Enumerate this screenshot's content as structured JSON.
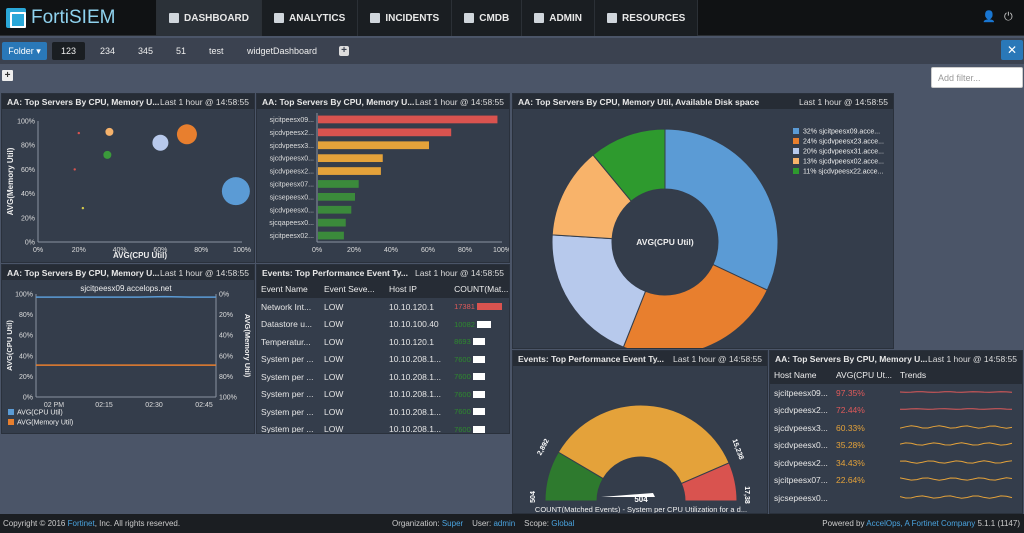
{
  "app": {
    "logo": "FortiSIEM"
  },
  "nav": [
    {
      "label": "DASHBOARD",
      "icon": "dashboard-icon"
    },
    {
      "label": "ANALYTICS",
      "icon": "chart-icon"
    },
    {
      "label": "INCIDENTS",
      "icon": "bell-icon"
    },
    {
      "label": "CMDB",
      "icon": "database-icon"
    },
    {
      "label": "ADMIN",
      "icon": "gears-icon"
    },
    {
      "label": "RESOURCES",
      "icon": "chart-icon"
    }
  ],
  "tabs": {
    "folder": "Folder ▾",
    "items": [
      "123",
      "234",
      "345",
      "51",
      "test",
      "widgetDashboard"
    ],
    "active": "123"
  },
  "filter": {
    "placeholder": "Add filter..."
  },
  "time": "Last 1 hour @ 14:58:55",
  "panels": {
    "p1": {
      "title": "AA: Top Servers By CPU, Memory U..."
    },
    "p2": {
      "title": "AA: Top Servers By CPU, Memory U..."
    },
    "p3": {
      "title": "AA: Top Servers By CPU, Memory Util, Available Disk space"
    },
    "p4": {
      "title": "AA: Top Servers By CPU, Memory U..."
    },
    "p5": {
      "title": "Events: Top Performance Event Ty..."
    },
    "p6": {
      "title": "Events: Top Performance Event Ty..."
    },
    "p7": {
      "title": "AA: Top Servers By CPU, Memory U..."
    }
  },
  "chart_data": [
    {
      "type": "scatter",
      "xlabel": "AVG(CPU Util)",
      "ylabel": "AVG(Memory Util)",
      "xlim": [
        0,
        100
      ],
      "ylim": [
        0,
        100
      ],
      "xticks": [
        "0%",
        "20%",
        "40%",
        "60%",
        "80%",
        "100%"
      ],
      "yticks": [
        "0%",
        "20%",
        "40%",
        "60%",
        "80%",
        "100%"
      ],
      "points": [
        {
          "x": 97,
          "y": 42,
          "r": 14,
          "color": "#5b9bd5"
        },
        {
          "x": 73,
          "y": 89,
          "r": 10,
          "color": "#e87f2e"
        },
        {
          "x": 60,
          "y": 82,
          "r": 8,
          "color": "#b7c9ec"
        },
        {
          "x": 35,
          "y": 91,
          "r": 4,
          "color": "#f5b26b"
        },
        {
          "x": 34,
          "y": 72,
          "r": 4,
          "color": "#3b9a3b"
        },
        {
          "x": 20,
          "y": 90,
          "r": 1.2,
          "color": "#d9534f"
        },
        {
          "x": 18,
          "y": 60,
          "r": 1.2,
          "color": "#d9534f"
        },
        {
          "x": 22,
          "y": 28,
          "r": 1.2,
          "color": "#d4c94a"
        }
      ]
    },
    {
      "type": "bar",
      "orientation": "horizontal",
      "categories": [
        "sjcitpeesx09...",
        "sjcdvpeesx2...",
        "sjcdvpeesx3...",
        "sjcdvpeesx0...",
        "sjcdvpeesx2...",
        "sjcitpeesx07...",
        "sjcsepeesx0...",
        "sjcdvpeesx0...",
        "sjcqapeesx0...",
        "sjcitpeesx02..."
      ],
      "values": [
        97,
        72,
        60,
        35,
        34,
        22,
        20,
        18,
        15,
        14
      ],
      "colors": [
        "#d9534f",
        "#d9534f",
        "#e4a23a",
        "#e4a23a",
        "#e4a23a",
        "#3b8a3b",
        "#3b8a3b",
        "#3b8a3b",
        "#3b8a3b",
        "#3b8a3b"
      ],
      "xlim": [
        0,
        100
      ],
      "xticks": [
        "0%",
        "20%",
        "40%",
        "60%",
        "80%",
        "100%"
      ]
    },
    {
      "type": "pie",
      "center_label": "AVG(CPU Util)",
      "slices": [
        {
          "label": "32% sjcitpeesx09.acce...",
          "value": 32,
          "color": "#5b9bd5"
        },
        {
          "label": "24% sjcdvpeesx23.acce...",
          "value": 24,
          "color": "#e87f2e"
        },
        {
          "label": "20% sjcdvpeesx31.acce...",
          "value": 20,
          "color": "#b7c9ec"
        },
        {
          "label": "13% sjcdvpeesx02.acce...",
          "value": 13,
          "color": "#f8b36a"
        },
        {
          "label": "11% sjcdvpeesx22.acce...",
          "value": 11,
          "color": "#2e9a2e"
        }
      ]
    },
    {
      "type": "line",
      "title": "sjcitpeesx09.accelops.net",
      "ylabel": "AVG(CPU Util)",
      "y2label": "AVG(Memory Util)",
      "ylim": [
        0,
        100
      ],
      "yticks": [
        "0%",
        "20%",
        "40%",
        "60%",
        "80%",
        "100%"
      ],
      "y2ticks": [
        "0%",
        "20%",
        "40%",
        "60%",
        "80%",
        "100%"
      ],
      "xticks": [
        "02 PM",
        "02:15",
        "02:30",
        "02:45"
      ],
      "series": [
        {
          "name": "AVG(CPU Util)",
          "color": "#5b9bd5",
          "values": [
            97,
            97,
            97,
            97,
            97,
            97.5,
            97,
            97
          ]
        },
        {
          "name": "AVG(Memory Util)",
          "color": "#e87f2e",
          "values": [
            31,
            31,
            31,
            31,
            31,
            31,
            31,
            31
          ]
        }
      ]
    },
    {
      "type": "table",
      "columns": [
        "Event Name",
        "Event Seve...",
        "Host IP",
        "COUNT(Mat..."
      ],
      "rows": [
        {
          "name": "Network Int...",
          "sev": "LOW",
          "ip": "10.10.120.1",
          "count": "17381",
          "pct": 100,
          "color": "#d9534f"
        },
        {
          "name": "Datastore u...",
          "sev": "LOW",
          "ip": "10.10.100.40",
          "count": "10082",
          "pct": 58,
          "color": "#fff"
        },
        {
          "name": "Temperatur...",
          "sev": "LOW",
          "ip": "10.10.120.1",
          "count": "8693",
          "pct": 50,
          "color": "#fff"
        },
        {
          "name": "System per ...",
          "sev": "LOW",
          "ip": "10.10.208.1...",
          "count": "7600",
          "pct": 49,
          "color": "#fff"
        },
        {
          "name": "System per ...",
          "sev": "LOW",
          "ip": "10.10.208.1...",
          "count": "7600",
          "pct": 49,
          "color": "#fff"
        },
        {
          "name": "System per ...",
          "sev": "LOW",
          "ip": "10.10.208.1...",
          "count": "7600",
          "pct": 49,
          "color": "#fff"
        },
        {
          "name": "System per ...",
          "sev": "LOW",
          "ip": "10.10.208.1...",
          "count": "7600",
          "pct": 49,
          "color": "#fff"
        },
        {
          "name": "System per ...",
          "sev": "LOW",
          "ip": "10.10.208.1...",
          "count": "7600",
          "pct": 49,
          "color": "#fff"
        }
      ]
    },
    {
      "type": "gauge",
      "labels": [
        "504",
        "2,892",
        "15,238",
        "17,38"
      ],
      "value_label": "504",
      "caption": "COUNT(Matched Events) - System per CPU Utilization for a d...",
      "bands": [
        {
          "from": 0,
          "to": 0.17,
          "color": "#2e7a2e"
        },
        {
          "from": 0.17,
          "to": 0.87,
          "color": "#e4a23a"
        },
        {
          "from": 0.87,
          "to": 1,
          "color": "#d9534f"
        }
      ],
      "needle": 0.0
    },
    {
      "type": "table",
      "columns": [
        "Host Name",
        "AVG(CPU Ut...",
        "Trends"
      ],
      "rows": [
        {
          "host": "sjcitpeesx09...",
          "cpu": "97.35%",
          "color": "#e05a5a"
        },
        {
          "host": "sjcdvpeesx2...",
          "cpu": "72.44%",
          "color": "#e05a5a"
        },
        {
          "host": "sjcdvpeesx3...",
          "cpu": "60.33%",
          "color": "#e4a23a"
        },
        {
          "host": "sjcdvpeesx0...",
          "cpu": "35.28%",
          "color": "#e4a23a"
        },
        {
          "host": "sjcdvpeesx2...",
          "cpu": "34.43%",
          "color": "#e4a23a"
        },
        {
          "host": "sjcitpeesx07...",
          "cpu": "22.64%",
          "color": "#e4a23a"
        },
        {
          "host": "sjcsepeesx0...",
          "cpu": "",
          "color": "#e4a23a"
        }
      ]
    }
  ],
  "footer": {
    "copyright_pre": "Copyright © 2016 ",
    "copyright_link": "Fortinet",
    "copyright_post": ", Inc. All rights reserved.",
    "org_label": "Organization:",
    "org_value": "Super",
    "user_label": "User:",
    "user_value": "admin",
    "scope_label": "Scope:",
    "scope_value": "Global",
    "powered_pre": "Powered by ",
    "powered_link": "AccelOps, A Fortinet Company",
    "powered_post": " 5.1.1 (1147)"
  }
}
